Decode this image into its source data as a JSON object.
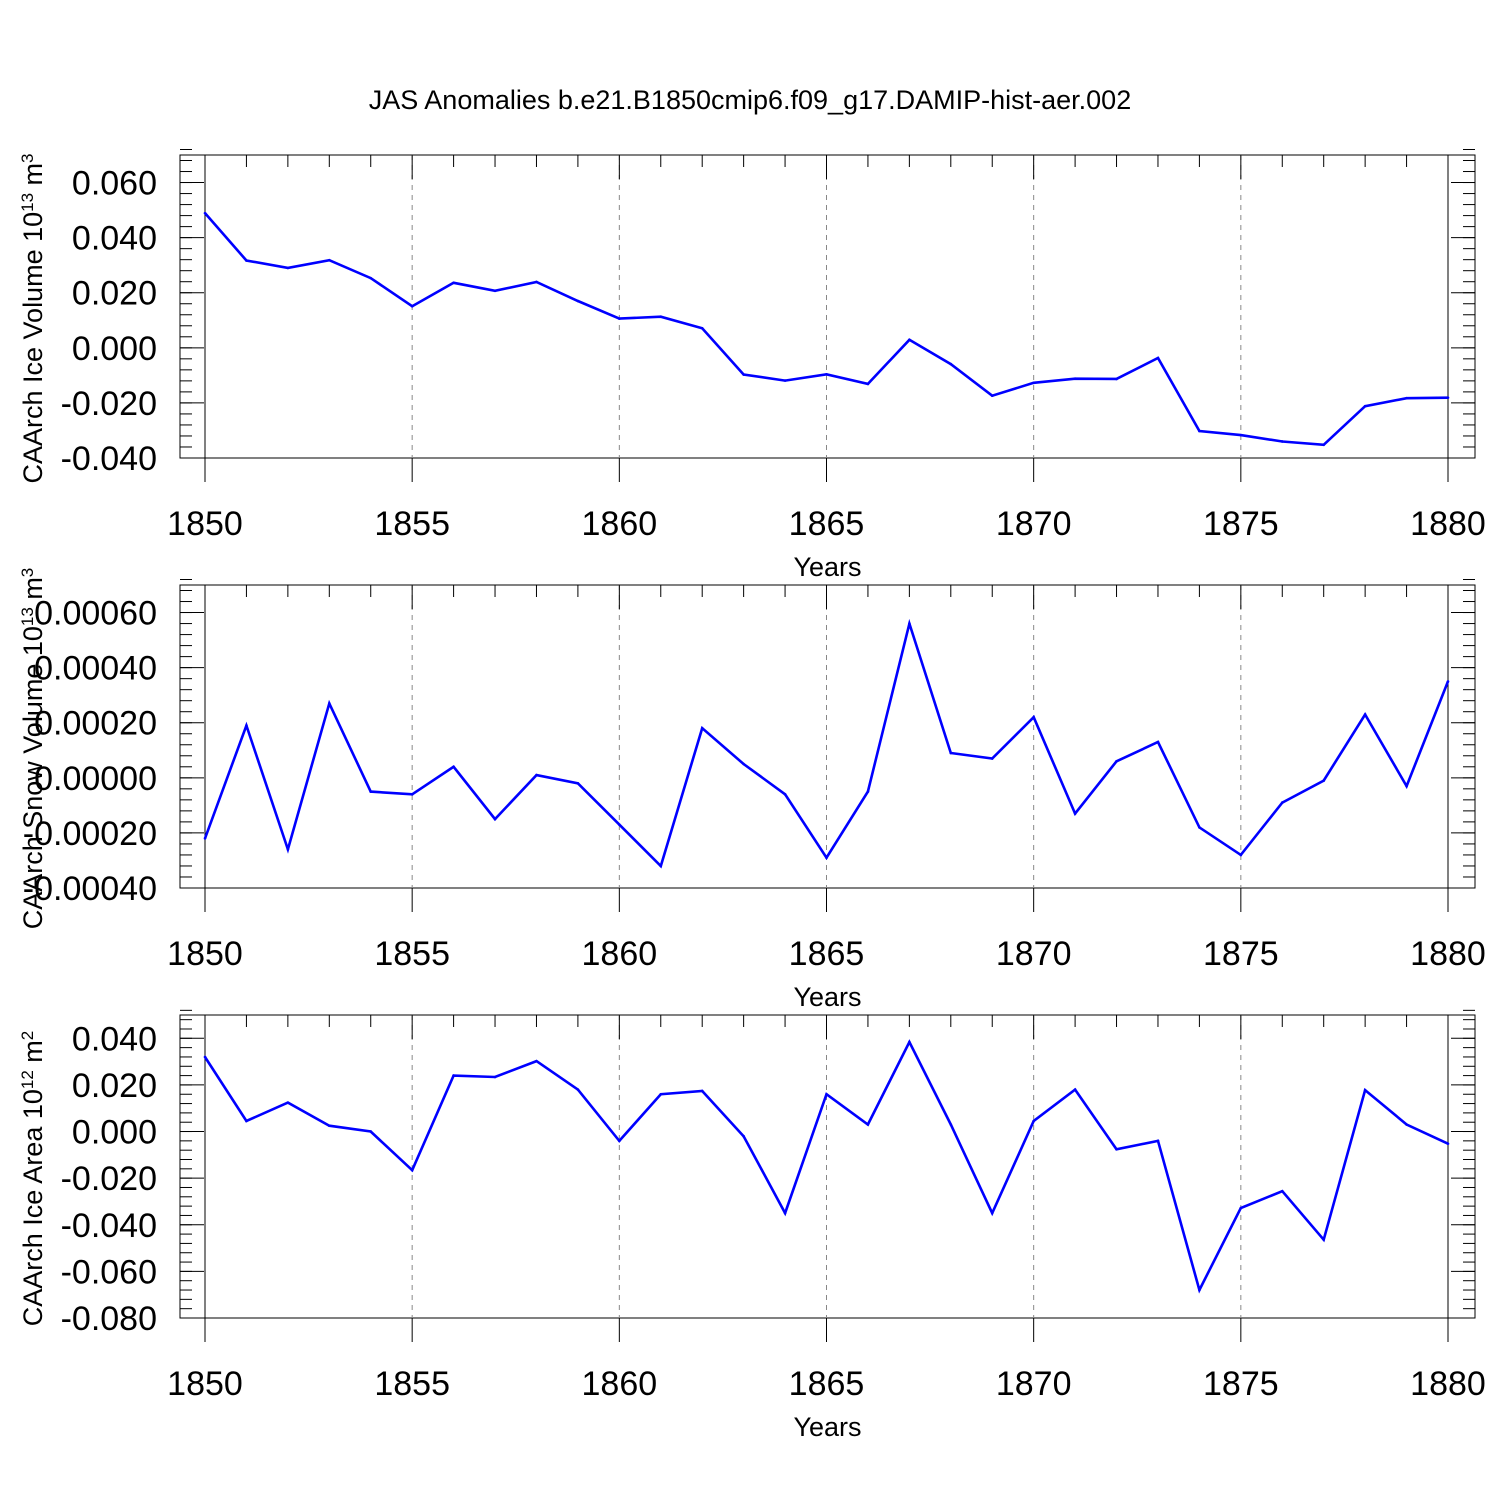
{
  "title": "JAS Anomalies b.e21.B1850cmip6.f09_g17.DAMIP-hist-aer.002",
  "colors": {
    "line": "#0000ff",
    "axis": "#000000",
    "grid": "#888888"
  },
  "chart_data": [
    {
      "type": "line",
      "ylabel": "CAArch Ice Volume 10",
      "ylabel_sup": "13",
      "ylabel_unit": " m",
      "ylabel_unit_sup": "3",
      "xlabel": "Years",
      "xlim": [
        1850,
        1880
      ],
      "ylim": [
        -0.04,
        0.07
      ],
      "xticks": [
        1850,
        1855,
        1860,
        1865,
        1870,
        1875,
        1880
      ],
      "xtick_labels": [
        "1850",
        "1855",
        "1860",
        "1865",
        "1870",
        "1875",
        "1880"
      ],
      "yticks": [
        -0.04,
        -0.02,
        0.0,
        0.02,
        0.04,
        0.06
      ],
      "ytick_labels": [
        "-0.040",
        "-0.020",
        "0.000",
        "0.020",
        "0.040",
        "0.060"
      ],
      "yminor_step": 0.004,
      "grid": "vertical dashed at major x ticks",
      "x": [
        1850,
        1851,
        1852,
        1853,
        1854,
        1855,
        1856,
        1857,
        1858,
        1859,
        1860,
        1861,
        1862,
        1863,
        1864,
        1865,
        1866,
        1867,
        1868,
        1869,
        1870,
        1871,
        1872,
        1873,
        1874,
        1875,
        1876,
        1877,
        1878,
        1879,
        1880
      ],
      "values": [
        0.0489,
        0.0317,
        0.029,
        0.0318,
        0.0253,
        0.0151,
        0.0236,
        0.0207,
        0.0239,
        0.017,
        0.0106,
        0.0113,
        0.0071,
        -0.0097,
        -0.0119,
        -0.0096,
        -0.0131,
        0.0029,
        -0.0059,
        -0.0174,
        -0.0127,
        -0.0112,
        -0.0113,
        -0.0037,
        -0.0302,
        -0.0317,
        -0.034,
        -0.0352,
        -0.0212,
        -0.0183,
        -0.0181
      ]
    },
    {
      "type": "line",
      "ylabel": "CAArch Snow Volume 10",
      "ylabel_sup": "13",
      "ylabel_unit": " m",
      "ylabel_unit_sup": "3",
      "xlabel": "Years",
      "xlim": [
        1850,
        1880
      ],
      "ylim": [
        -0.0004,
        0.0007
      ],
      "xticks": [
        1850,
        1855,
        1860,
        1865,
        1870,
        1875,
        1880
      ],
      "xtick_labels": [
        "1850",
        "1855",
        "1860",
        "1865",
        "1870",
        "1875",
        "1880"
      ],
      "yticks": [
        -0.0004,
        -0.0002,
        0.0,
        0.0002,
        0.0004,
        0.0006
      ],
      "ytick_labels": [
        "-0.00040",
        "-0.00020",
        "0.00000",
        "0.00020",
        "0.00040",
        "0.00060"
      ],
      "yminor_step": 4e-05,
      "grid": "vertical dashed at major x ticks",
      "x": [
        1850,
        1851,
        1852,
        1853,
        1854,
        1855,
        1856,
        1857,
        1858,
        1859,
        1860,
        1861,
        1862,
        1863,
        1864,
        1865,
        1866,
        1867,
        1868,
        1869,
        1870,
        1871,
        1872,
        1873,
        1874,
        1875,
        1876,
        1877,
        1878,
        1879,
        1880
      ],
      "values": [
        -0.00022,
        0.00019,
        -0.00026,
        0.00027,
        -5e-05,
        -6e-05,
        4e-05,
        -0.00015,
        1e-05,
        -2e-05,
        -0.00017,
        -0.00032,
        0.00018,
        5e-05,
        -6e-05,
        -0.00029,
        -5e-05,
        0.00056,
        9e-05,
        7e-05,
        0.00022,
        -0.00013,
        6e-05,
        0.00013,
        -0.00018,
        -0.00028,
        -9e-05,
        -1e-05,
        0.00023,
        -3e-05,
        0.00035
      ]
    },
    {
      "type": "line",
      "ylabel": "CAArch Ice Area 10",
      "ylabel_sup": "12",
      "ylabel_unit": " m",
      "ylabel_unit_sup": "2",
      "xlabel": "Years",
      "xlim": [
        1850,
        1880
      ],
      "ylim": [
        -0.08,
        0.05
      ],
      "xticks": [
        1850,
        1855,
        1860,
        1865,
        1870,
        1875,
        1880
      ],
      "xtick_labels": [
        "1850",
        "1855",
        "1860",
        "1865",
        "1870",
        "1875",
        "1880"
      ],
      "yticks": [
        -0.08,
        -0.06,
        -0.04,
        -0.02,
        0.0,
        0.02,
        0.04
      ],
      "ytick_labels": [
        "-0.080",
        "-0.060",
        "-0.040",
        "-0.020",
        "0.000",
        "0.020",
        "0.040"
      ],
      "yminor_step": 0.004,
      "grid": "vertical dashed at major x ticks",
      "x": [
        1850,
        1851,
        1852,
        1853,
        1854,
        1855,
        1856,
        1857,
        1858,
        1859,
        1860,
        1861,
        1862,
        1863,
        1864,
        1865,
        1866,
        1867,
        1868,
        1869,
        1870,
        1871,
        1872,
        1873,
        1874,
        1875,
        1876,
        1877,
        1878,
        1879,
        1880
      ],
      "values": [
        0.032,
        0.0045,
        0.0124,
        0.0025,
        0.0,
        -0.0166,
        0.024,
        0.0234,
        0.0302,
        0.018,
        -0.004,
        0.016,
        0.0174,
        -0.002,
        -0.035,
        0.016,
        0.003,
        0.0384,
        0.003,
        -0.035,
        0.0045,
        0.018,
        -0.0076,
        -0.004,
        -0.068,
        -0.0328,
        -0.0256,
        -0.0464,
        0.0178,
        0.003,
        -0.0052
      ]
    }
  ]
}
